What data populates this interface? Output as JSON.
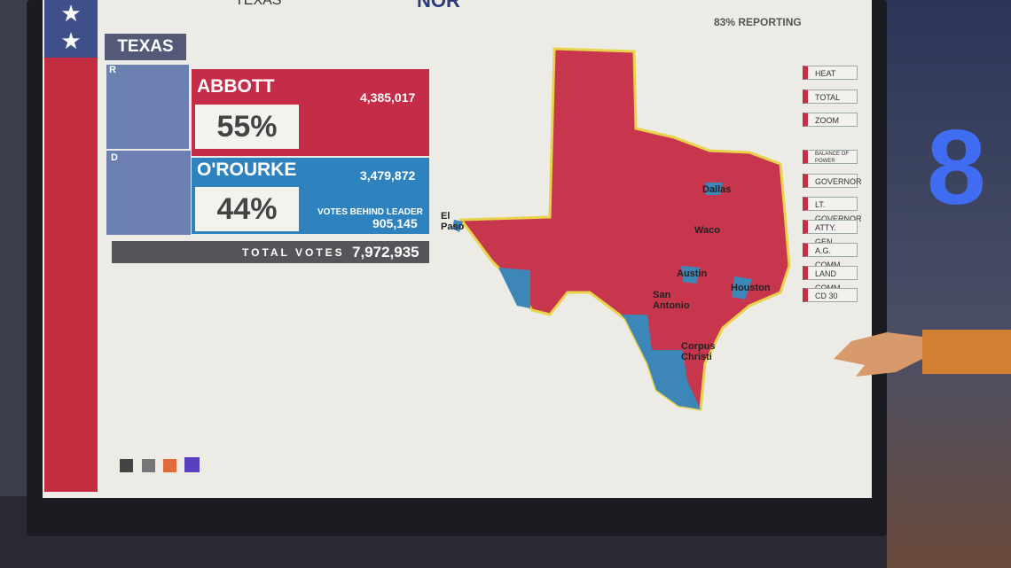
{
  "header": {
    "state": "TEXAS",
    "race": "NOR",
    "reporting": "83% REPORTING"
  },
  "panel": {
    "state": "TEXAS",
    "candidates": [
      {
        "party": "R",
        "name": "ABBOTT",
        "votes": "4,385,017",
        "percent": "55%"
      },
      {
        "party": "D",
        "name": "O'ROURKE",
        "votes": "3,479,872",
        "percent": "44%"
      }
    ],
    "behind_label": "VOTES BEHIND LEADER",
    "behind_value": "905,145",
    "total_label": "TOTAL VOTES",
    "total_value": "7,972,935"
  },
  "map": {
    "cities": [
      "El Paso",
      "Dallas",
      "Waco",
      "Austin",
      "San Antonio",
      "Houston",
      "Corpus Christi"
    ]
  },
  "menu": [
    "HEAT",
    "TOTAL",
    "ZOOM",
    "BALANCE OF POWER",
    "GOVERNOR",
    "LT. GOVERNOR",
    "ATTY. GEN.",
    "A.G. COMM.",
    "LAND COMM.",
    "CD 30"
  ],
  "logo": "8"
}
